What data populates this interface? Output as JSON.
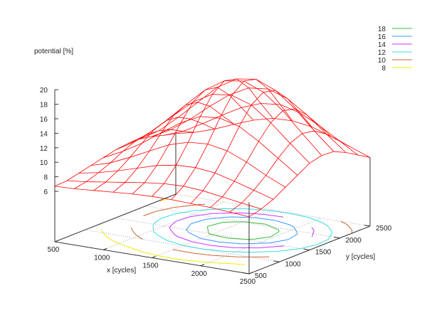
{
  "chart_data": {
    "type": "surface3d",
    "zlabel": "potential [%]",
    "xlabel": "x [cycles]",
    "ylabel": "y [cycles]",
    "xlim": [
      500,
      2500
    ],
    "ylim": [
      500,
      2500
    ],
    "zlim": [
      6,
      20
    ],
    "x_ticks": [
      500,
      1000,
      1500,
      2000,
      2500
    ],
    "y_ticks": [
      500,
      1000,
      1500,
      2000,
      2500
    ],
    "z_ticks": [
      6,
      8,
      10,
      12,
      14,
      16,
      18,
      20
    ],
    "grid": true,
    "surface_color": "#ff0000",
    "x": [
      500,
      700,
      900,
      1100,
      1300,
      1500,
      1700,
      1900,
      2100,
      2300,
      2500
    ],
    "y": [
      500,
      700,
      900,
      1100,
      1300,
      1500,
      1700,
      1900,
      2100,
      2300,
      2500
    ],
    "z": [
      [
        6.7,
        6.8,
        7.0,
        7.2,
        7.4,
        7.5,
        7.5,
        7.4,
        7.3,
        7.1,
        6.9
      ],
      [
        6.8,
        7.1,
        7.5,
        7.9,
        8.3,
        8.6,
        8.7,
        8.5,
        8.1,
        7.7,
        7.3
      ],
      [
        7.2,
        7.7,
        8.4,
        9.2,
        10.0,
        10.5,
        10.6,
        10.3,
        9.6,
        8.8,
        8.0
      ],
      [
        7.6,
        8.4,
        9.6,
        10.9,
        12.2,
        13.0,
        13.2,
        12.7,
        11.6,
        10.2,
        9.0
      ],
      [
        8.0,
        9.3,
        10.9,
        12.8,
        14.6,
        15.9,
        16.1,
        15.4,
        13.8,
        11.9,
        10.0
      ],
      [
        8.4,
        10.0,
        12.1,
        14.5,
        16.8,
        18.3,
        18.6,
        17.7,
        15.7,
        13.3,
        11.0
      ],
      [
        8.6,
        10.3,
        12.7,
        15.3,
        17.8,
        19.5,
        19.9,
        18.8,
        16.7,
        14.0,
        11.4
      ],
      [
        8.6,
        10.2,
        12.5,
        15.0,
        17.5,
        19.1,
        19.5,
        18.4,
        16.3,
        13.7,
        11.3
      ],
      [
        8.3,
        9.7,
        11.6,
        13.8,
        15.8,
        17.2,
        17.5,
        16.6,
        14.8,
        12.6,
        10.5
      ],
      [
        7.8,
        8.8,
        10.3,
        11.9,
        13.4,
        14.4,
        14.7,
        14.0,
        12.7,
        11.1,
        9.5
      ],
      [
        7.4,
        8.0,
        8.9,
        10.0,
        11.0,
        11.7,
        11.8,
        11.4,
        10.5,
        9.5,
        8.5
      ]
    ],
    "contours": [
      {
        "level": 18,
        "label": "18",
        "color": "#33bb33"
      },
      {
        "level": 16,
        "label": "16",
        "color": "#3399ff"
      },
      {
        "level": 14,
        "label": "14",
        "color": "#cc33ff"
      },
      {
        "level": 12,
        "label": "12",
        "color": "#33dddd"
      },
      {
        "level": 10,
        "label": "10",
        "color": "#cc6633"
      },
      {
        "level": 8,
        "label": "8",
        "color": "#eeee00"
      }
    ],
    "legend_position": "top-right"
  }
}
